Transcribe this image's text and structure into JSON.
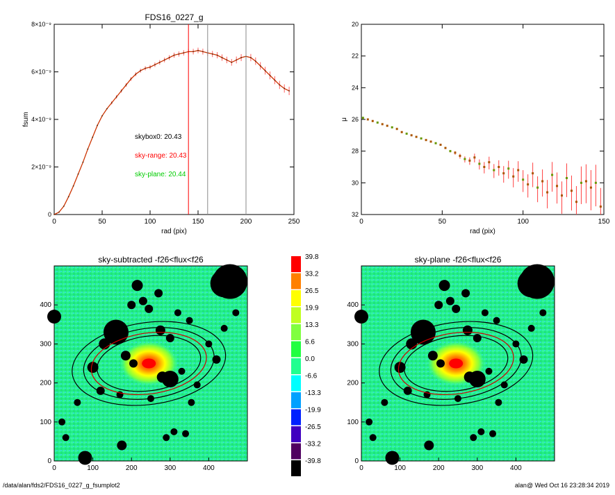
{
  "footer": {
    "path": "/data/alan/fds2/FDS16_0227_g_fsumplot2",
    "user_stamp": "alan@  Wed Oct 16 23:28:34 2019"
  },
  "colors": {
    "model": "#cc3300",
    "skyrange": "#ff0000",
    "skyplane": "#00cc00",
    "vline_gray": "#888888"
  },
  "chart_data": [
    {
      "id": "fsum",
      "type": "line",
      "title": "FDS16_0227_g",
      "xlabel": "rad (pix)",
      "ylabel": "fsum",
      "xlim": [
        0,
        250
      ],
      "ylim": [
        0,
        8e-09
      ],
      "xticks": [
        0,
        50,
        100,
        150,
        200,
        250
      ],
      "yticks": [
        {
          "value": 0,
          "label": "0"
        },
        {
          "value": 2e-09,
          "label": "2×10⁻⁹"
        },
        {
          "value": 4e-09,
          "label": "4×10⁻⁹"
        },
        {
          "value": 6e-09,
          "label": "6×10⁻⁹"
        },
        {
          "value": 8e-09,
          "label": "8×10⁻⁹"
        }
      ],
      "x": [
        0,
        5,
        10,
        15,
        20,
        25,
        30,
        35,
        40,
        45,
        50,
        55,
        60,
        65,
        70,
        75,
        80,
        85,
        90,
        95,
        100,
        105,
        110,
        115,
        120,
        125,
        130,
        135,
        140,
        145,
        150,
        155,
        160,
        165,
        170,
        175,
        180,
        185,
        190,
        195,
        200,
        205,
        210,
        215,
        220,
        225,
        230,
        235,
        240,
        245
      ],
      "y": [
        0,
        1e-10,
        3.5e-10,
        7.5e-10,
        1.2e-09,
        1.7e-09,
        2.2e-09,
        2.75e-09,
        3.25e-09,
        3.75e-09,
        4.15e-09,
        4.45e-09,
        4.7e-09,
        4.95e-09,
        5.2e-09,
        5.45e-09,
        5.7e-09,
        5.9e-09,
        6.05e-09,
        6.15e-09,
        6.2e-09,
        6.3e-09,
        6.4e-09,
        6.5e-09,
        6.6e-09,
        6.7e-09,
        6.75e-09,
        6.8e-09,
        6.85e-09,
        6.85e-09,
        6.9e-09,
        6.85e-09,
        6.8e-09,
        6.75e-09,
        6.7e-09,
        6.6e-09,
        6.5e-09,
        6.4e-09,
        6.5e-09,
        6.6e-09,
        6.65e-09,
        6.6e-09,
        6.45e-09,
        6.25e-09,
        6.05e-09,
        5.85e-09,
        5.65e-09,
        5.45e-09,
        5.3e-09,
        5.2e-09
      ],
      "vlines": [
        {
          "x": 140,
          "color": "#ff0000"
        },
        {
          "x": 160,
          "color": "#888888"
        },
        {
          "x": 200,
          "color": "#888888"
        }
      ],
      "annotations": [
        {
          "text": "skybox0: 20.43",
          "color": "#000000"
        },
        {
          "text": "sky-range: 20.43",
          "color": "#ff0000"
        },
        {
          "text": "sky-plane: 20.44",
          "color": "#00cc00"
        }
      ]
    },
    {
      "id": "mu",
      "type": "scatter",
      "title": "",
      "xlabel": "rad (pix)",
      "ylabel": "μ",
      "xlim": [
        0,
        150
      ],
      "ylim": [
        20,
        32
      ],
      "y_inverted": true,
      "xticks": [
        0,
        50,
        100,
        150
      ],
      "yticks": [
        20,
        22,
        24,
        26,
        28,
        30,
        32
      ],
      "x": [
        1,
        4,
        7,
        10,
        13,
        16,
        19,
        22,
        25,
        28,
        31,
        34,
        37,
        40,
        43,
        46,
        49,
        52,
        55,
        58,
        61,
        64,
        67,
        70,
        73,
        76,
        79,
        82,
        85,
        88,
        91,
        94,
        97,
        100,
        103,
        106,
        109,
        112,
        115,
        118,
        121,
        124,
        127,
        130,
        133,
        136,
        139,
        142,
        145,
        148
      ],
      "y": [
        25.9,
        26.0,
        26.1,
        26.2,
        26.3,
        26.4,
        26.5,
        26.6,
        26.8,
        26.9,
        27.0,
        27.1,
        27.2,
        27.3,
        27.4,
        27.5,
        27.6,
        27.8,
        28.0,
        28.1,
        28.3,
        28.5,
        28.6,
        28.4,
        28.8,
        29.0,
        28.7,
        29.2,
        29.0,
        29.4,
        29.1,
        29.6,
        29.2,
        29.8,
        30.1,
        29.4,
        30.3,
        29.9,
        30.6,
        29.5,
        30.2,
        30.8,
        29.7,
        30.5,
        31.2,
        30.0,
        29.9,
        30.3,
        30.0,
        31.5
      ]
    },
    {
      "id": "map_sub",
      "type": "heatmap",
      "title": "sky-subtracted -f26<flux<f26",
      "xlim": [
        0,
        500
      ],
      "ylim": [
        0,
        500
      ],
      "xticks": [
        0,
        100,
        200,
        300,
        400
      ],
      "yticks": [
        0,
        100,
        200,
        300,
        400
      ],
      "center": [
        245,
        250
      ],
      "ellipses": [
        {
          "a": 200,
          "b": 105,
          "angle_deg": 8,
          "color": "#000000"
        },
        {
          "a": 170,
          "b": 90,
          "angle_deg": 8,
          "color": "#000000"
        },
        {
          "a": 150,
          "b": 78,
          "angle_deg": 8,
          "color": "#cc0000"
        },
        {
          "a": 135,
          "b": 70,
          "angle_deg": 8,
          "color": "#000000"
        }
      ]
    },
    {
      "id": "map_plane",
      "type": "heatmap",
      "title": "sky-plane -f26<flux<f26",
      "xlim": [
        0,
        500
      ],
      "ylim": [
        0,
        500
      ],
      "xticks": [
        0,
        100,
        200,
        300,
        400
      ],
      "yticks": [
        0,
        100,
        200,
        300,
        400
      ],
      "center": [
        245,
        250
      ],
      "ellipses": [
        {
          "a": 200,
          "b": 105,
          "angle_deg": 8,
          "color": "#000000"
        },
        {
          "a": 170,
          "b": 90,
          "angle_deg": 8,
          "color": "#000000"
        },
        {
          "a": 150,
          "b": 78,
          "angle_deg": 8,
          "color": "#cc0000"
        },
        {
          "a": 135,
          "b": 70,
          "angle_deg": 8,
          "color": "#000000"
        }
      ]
    },
    {
      "id": "colorbar",
      "type": "table",
      "title": "",
      "levels": [
        {
          "label": "39.8",
          "color": "#ff0000"
        },
        {
          "label": "33.2",
          "color": "#ff8000"
        },
        {
          "label": "26.5",
          "color": "#ffff00"
        },
        {
          "label": "19.9",
          "color": "#c0ff20"
        },
        {
          "label": "13.3",
          "color": "#80ff40"
        },
        {
          "label": "6.6",
          "color": "#20ff40"
        },
        {
          "label": "0.0",
          "color": "#20ff90"
        },
        {
          "label": "-6.6",
          "color": "#00ffff"
        },
        {
          "label": "-13.3",
          "color": "#00a0ff"
        },
        {
          "label": "-19.9",
          "color": "#0020ff"
        },
        {
          "label": "-26.5",
          "color": "#4000c0"
        },
        {
          "label": "-33.2",
          "color": "#500060"
        },
        {
          "label": "-39.8",
          "color": "#000000"
        }
      ]
    }
  ]
}
